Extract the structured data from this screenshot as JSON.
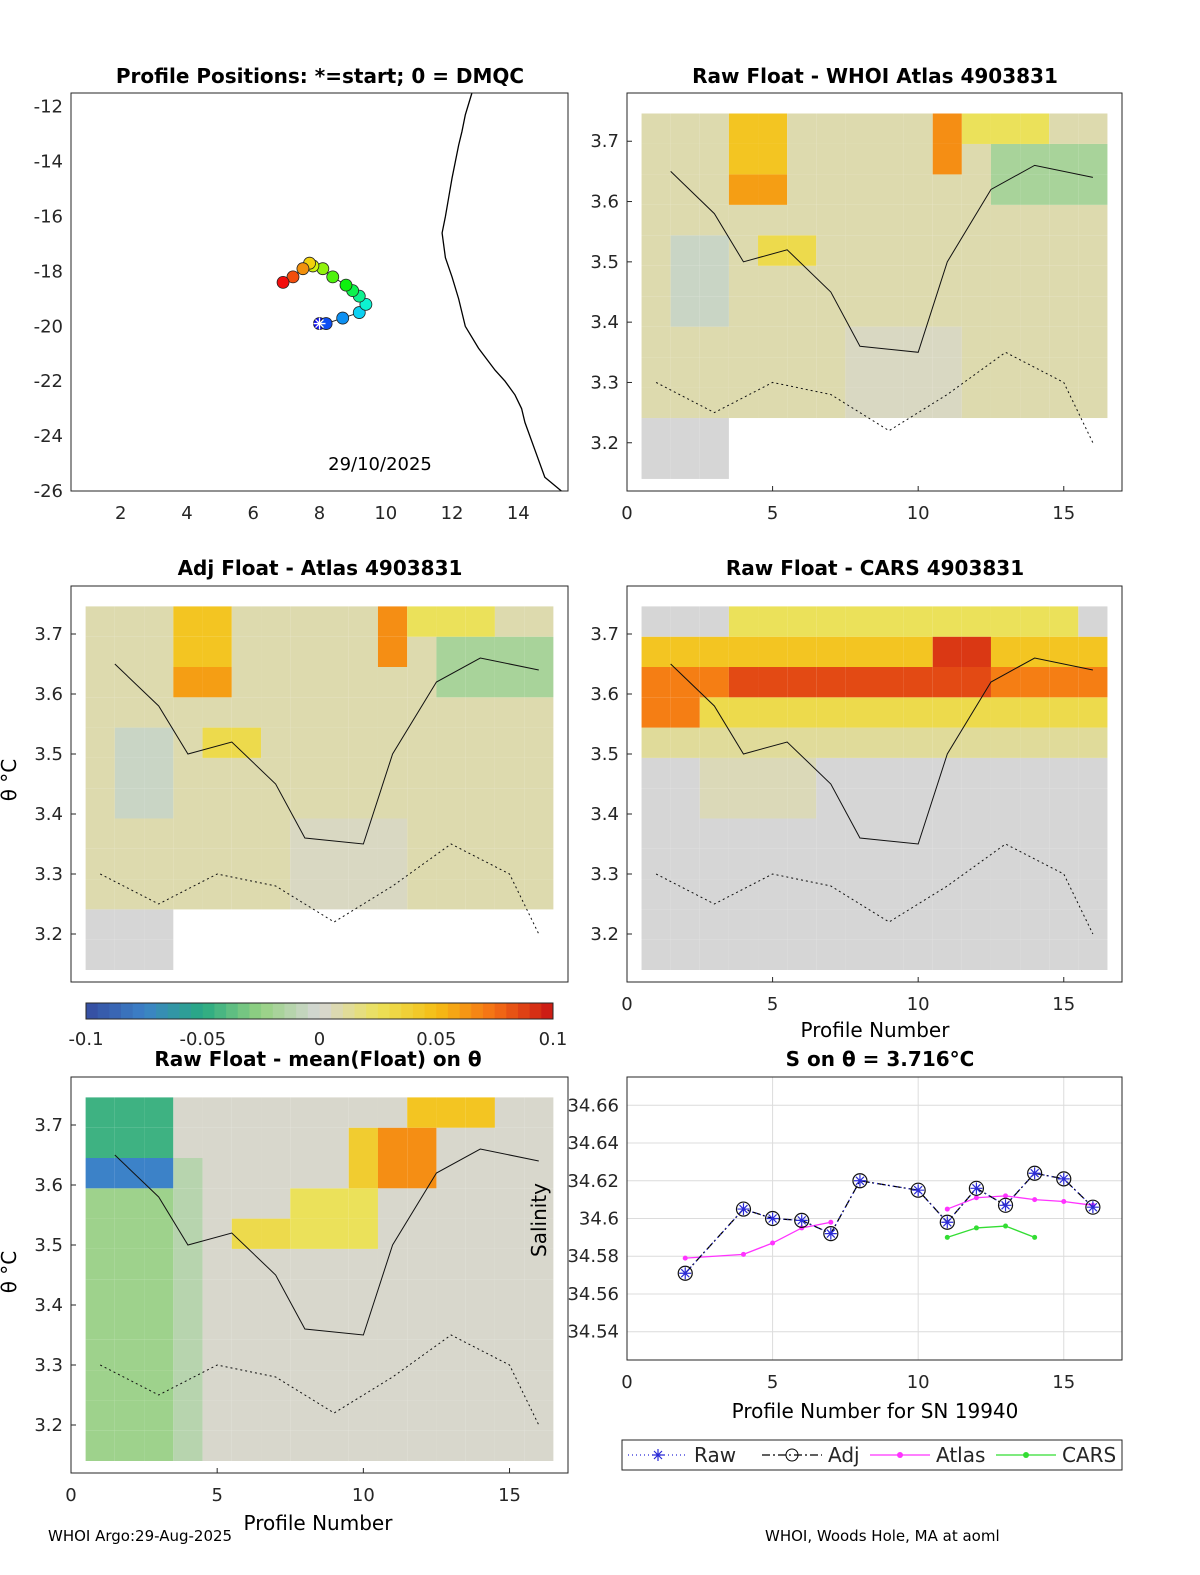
{
  "footer": {
    "left": "WHOI Argo:29-Aug-2025",
    "right": "WHOI, Woods Hole, MA at aoml"
  },
  "colors": {
    "bg": "#ffffff",
    "axis": "#262626",
    "grid": "#dcdcdc",
    "raw": "#2b2bd6",
    "adj": "#000000",
    "atlas": "#ff33ff",
    "cars": "#33dd33",
    "coast": "#000000"
  },
  "chart_data": [
    {
      "id": "positions",
      "type": "scatter",
      "title": "Profile Positions: *=start; 0 = DMQC",
      "xlim": [
        0.5,
        15.5
      ],
      "ylim": [
        -26,
        -11.5
      ],
      "xticks": [
        "2",
        "4",
        "6",
        "8",
        "10",
        "12",
        "14"
      ],
      "yticks": [
        "-12",
        "-14",
        "-16",
        "-18",
        "-20",
        "-22",
        "-24",
        "-26"
      ],
      "annotation": "29/10/2025",
      "lon": [
        8.0,
        8.2,
        8.7,
        9.2,
        9.4,
        9.2,
        9.0,
        8.8,
        8.4,
        8.1,
        7.8,
        7.7,
        7.5,
        7.2,
        6.9
      ],
      "lat": [
        -19.9,
        -19.9,
        -19.7,
        -19.5,
        -19.2,
        -18.9,
        -18.7,
        -18.5,
        -18.2,
        -17.9,
        -17.8,
        -17.7,
        -17.9,
        -18.2,
        -18.4
      ],
      "coast_lon": [
        15.3,
        14.8,
        14.5,
        14.2,
        14.1,
        13.9,
        13.6,
        13.3,
        12.8,
        12.4,
        12.2,
        12.0,
        11.8,
        11.7,
        11.8,
        11.9,
        12.0,
        12.1,
        12.2,
        12.3,
        12.4,
        12.6
      ],
      "coast_lat": [
        -26.0,
        -25.5,
        -24.5,
        -23.5,
        -23.0,
        -22.5,
        -22.0,
        -21.6,
        -20.8,
        -20.0,
        -19.0,
        -18.2,
        -17.5,
        -16.6,
        -16.0,
        -15.3,
        -14.6,
        -14.0,
        -13.4,
        -12.9,
        -12.3,
        -11.5
      ]
    },
    {
      "id": "raw_atlas",
      "type": "heatmap",
      "title": "Raw Float - WHOI Atlas  4903831",
      "xlim": [
        0,
        17
      ],
      "ylim": [
        3.12,
        3.78
      ],
      "xticks": [
        "0",
        "5",
        "10",
        "15"
      ],
      "yticks": [
        "3.2",
        "3.3",
        "3.4",
        "3.5",
        "3.6",
        "3.7"
      ],
      "xlabel": "",
      "ylabel": ""
    },
    {
      "id": "adj_atlas",
      "type": "heatmap",
      "title": "Adj Float - Atlas  4903831",
      "xlim": [
        0,
        17
      ],
      "ylim": [
        3.12,
        3.78
      ],
      "xticks": [],
      "yticks": [
        "3.2",
        "3.3",
        "3.4",
        "3.5",
        "3.6",
        "3.7"
      ],
      "xlabel": "",
      "ylabel": "θ °C"
    },
    {
      "id": "raw_cars",
      "type": "heatmap",
      "title": "Raw Float - CARS  4903831",
      "xlim": [
        0,
        17
      ],
      "ylim": [
        3.12,
        3.78
      ],
      "xticks": [
        "0",
        "5",
        "10",
        "15"
      ],
      "yticks": [
        "3.2",
        "3.3",
        "3.4",
        "3.5",
        "3.6",
        "3.7"
      ],
      "xlabel": "Profile Number",
      "ylabel": ""
    },
    {
      "id": "raw_mean",
      "type": "heatmap",
      "title": "Raw Float - mean(Float) on θ",
      "xlim": [
        0,
        17
      ],
      "ylim": [
        3.12,
        3.78
      ],
      "xticks": [
        "0",
        "5",
        "10",
        "15"
      ],
      "yticks": [
        "3.2",
        "3.3",
        "3.4",
        "3.5",
        "3.6",
        "3.7"
      ],
      "xlabel": "Profile Number",
      "ylabel": "θ °C"
    },
    {
      "id": "colorbar",
      "type": "colorbar",
      "range": [
        -0.1,
        0.1
      ],
      "ticks": [
        "-0.1",
        "-0.05",
        "0",
        "0.05",
        "0.1"
      ]
    },
    {
      "id": "salinity",
      "type": "line",
      "title": "S on θ = 3.716°C",
      "xlabel": "Profile Number for SN 19940",
      "ylabel": "Salinity",
      "xlim": [
        0,
        17
      ],
      "ylim": [
        34.525,
        34.675
      ],
      "xticks": [
        "0",
        "5",
        "10",
        "15"
      ],
      "yticks": [
        "34.54",
        "34.56",
        "34.58",
        "34.6",
        "34.62",
        "34.64",
        "34.66"
      ],
      "series": [
        {
          "name": "Raw",
          "x": [
            2,
            4,
            5,
            6,
            7,
            8,
            10,
            11,
            12,
            13,
            14,
            15,
            16
          ],
          "y": [
            34.571,
            34.605,
            34.6,
            34.599,
            34.592,
            34.62,
            34.615,
            34.598,
            34.616,
            34.607,
            34.624,
            34.621,
            34.606
          ]
        },
        {
          "name": "Adj",
          "x": [
            2,
            4,
            5,
            6,
            7,
            8,
            10,
            11,
            12,
            13,
            14,
            15,
            16
          ],
          "y": [
            34.571,
            34.605,
            34.6,
            34.599,
            34.592,
            34.62,
            34.615,
            34.598,
            34.616,
            34.607,
            34.624,
            34.621,
            34.606
          ]
        },
        {
          "name": "Atlas",
          "x": [
            2,
            4,
            5,
            6,
            7
          ],
          "y": [
            34.579,
            34.581,
            34.587,
            34.595,
            34.598
          ],
          "x2": [
            11,
            12,
            13,
            14,
            15,
            16
          ],
          "y2": [
            34.605,
            34.611,
            34.612,
            34.61,
            34.609,
            34.607
          ]
        },
        {
          "name": "CARS",
          "x": [
            11,
            12,
            13,
            14
          ],
          "y": [
            34.59,
            34.595,
            34.596,
            34.59
          ]
        }
      ],
      "legend": [
        "Raw",
        "Adj",
        "Atlas",
        "CARS"
      ]
    }
  ]
}
